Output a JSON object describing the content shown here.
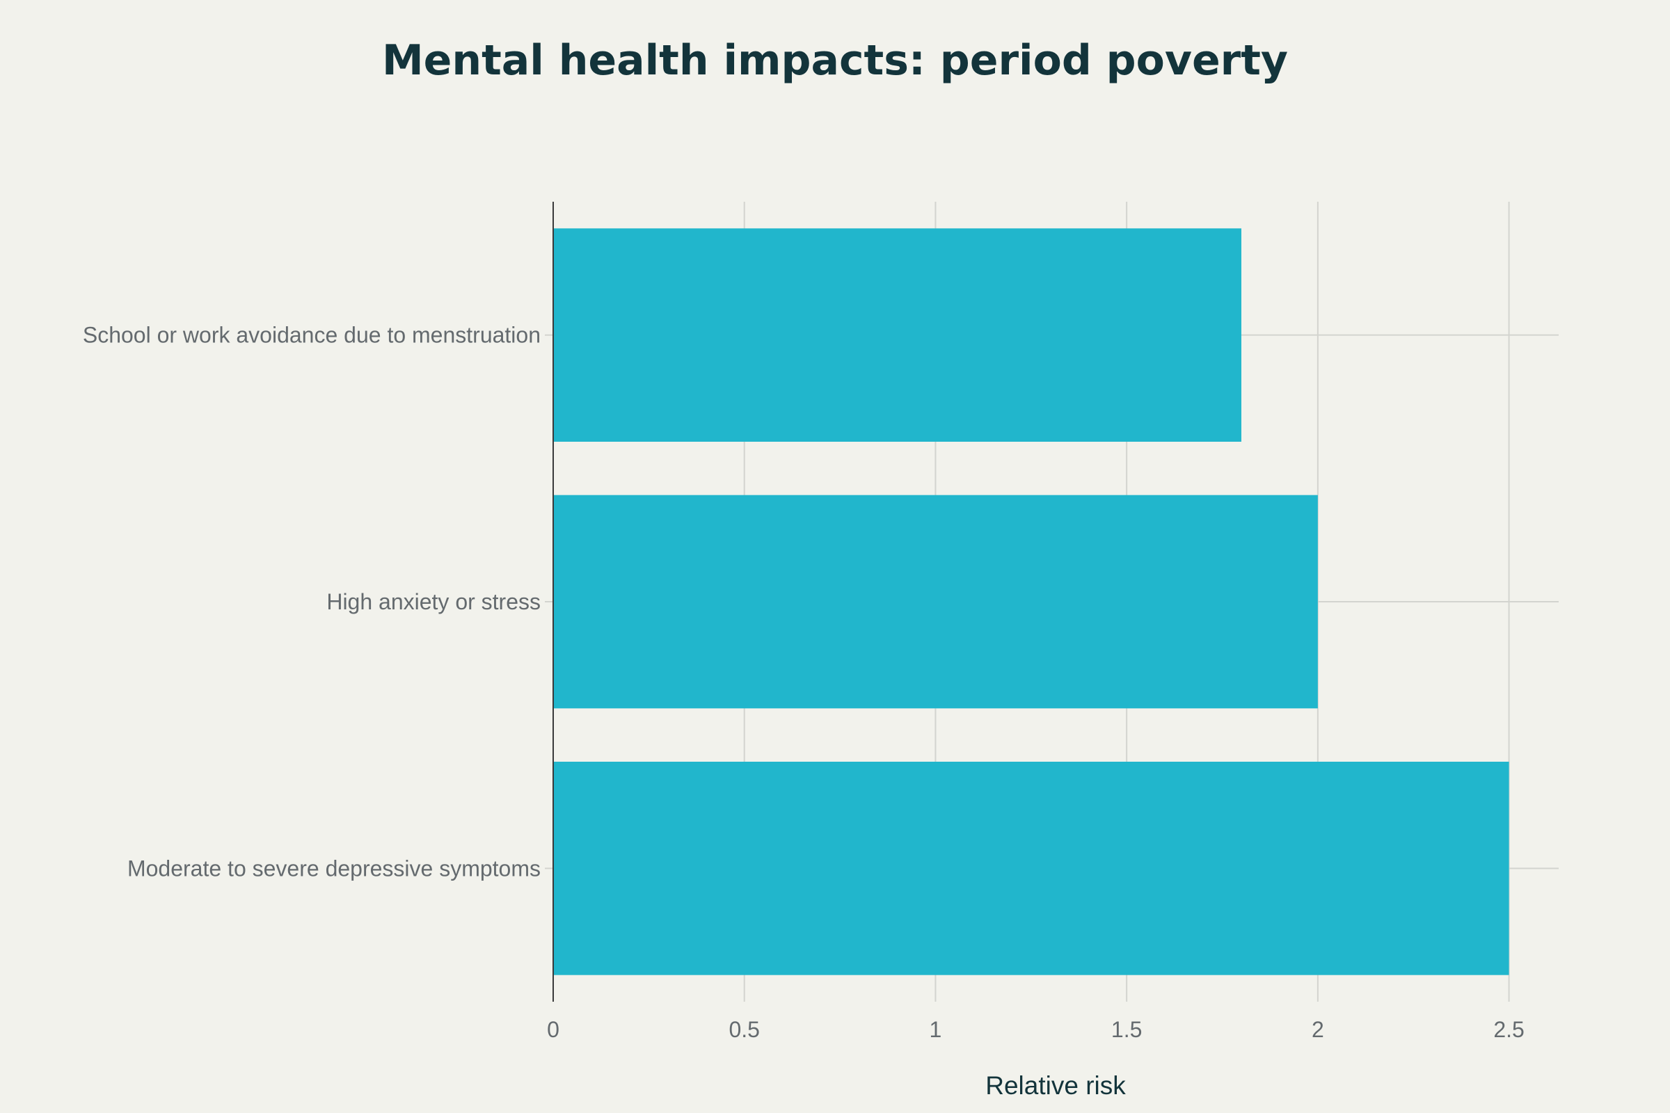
{
  "chart_data": {
    "type": "bar",
    "orientation": "horizontal",
    "title": "Mental health impacts: period poverty",
    "xlabel": "Relative risk",
    "ylabel": "",
    "categories": [
      "School or work avoidance due to menstruation",
      "High anxiety or stress",
      "Moderate to severe depressive symptoms"
    ],
    "values": [
      1.8,
      2.0,
      2.5
    ],
    "xlim": [
      0,
      2.63
    ],
    "xticks": [
      0,
      0.5,
      1,
      1.5,
      2,
      2.5
    ],
    "xtick_labels": [
      "0",
      "0.5",
      "1",
      "1.5",
      "2",
      "2.5"
    ],
    "grid": true,
    "legend": "none",
    "colors": {
      "bar": "#21b6cc",
      "background": "#f2f2ec",
      "title": "#13343b"
    }
  }
}
